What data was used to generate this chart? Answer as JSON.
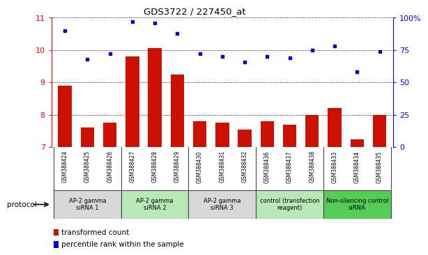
{
  "title": "GDS3722 / 227450_at",
  "samples": [
    "GSM388424",
    "GSM388425",
    "GSM388426",
    "GSM388427",
    "GSM388428",
    "GSM388429",
    "GSM388430",
    "GSM388431",
    "GSM388432",
    "GSM388436",
    "GSM388437",
    "GSM388438",
    "GSM388433",
    "GSM388434",
    "GSM388435"
  ],
  "bar_values": [
    8.9,
    7.6,
    7.75,
    9.8,
    10.05,
    9.25,
    7.8,
    7.75,
    7.55,
    7.8,
    7.7,
    8.0,
    8.2,
    7.25,
    8.0
  ],
  "dot_values": [
    90,
    68,
    72,
    97,
    96,
    88,
    72,
    70,
    66,
    70,
    69,
    75,
    78,
    58,
    74
  ],
  "ylim_left": [
    7,
    11
  ],
  "ylim_right": [
    0,
    100
  ],
  "yticks_left": [
    7,
    8,
    9,
    10,
    11
  ],
  "yticks_right": [
    0,
    25,
    50,
    75,
    100
  ],
  "ytick_labels_right": [
    "0",
    "25",
    "50",
    "75",
    "100%"
  ],
  "groups": [
    {
      "label": "AP-2 gamma\nsiRNA 1",
      "indices": [
        0,
        1,
        2
      ],
      "color": "#d8d8d8"
    },
    {
      "label": "AP-2 gamma\nsiRNA 2",
      "indices": [
        3,
        4,
        5
      ],
      "color": "#b8e8b8"
    },
    {
      "label": "AP-2 gamma\nsiRNA 3",
      "indices": [
        6,
        7,
        8
      ],
      "color": "#d8d8d8"
    },
    {
      "label": "control (transfection\nreagent)",
      "indices": [
        9,
        10,
        11
      ],
      "color": "#b8e8b8"
    },
    {
      "label": "Non-silencing control\nsiRNA",
      "indices": [
        12,
        13,
        14
      ],
      "color": "#55cc55"
    }
  ],
  "bar_color": "#cc1100",
  "dot_color": "#0000cc",
  "protocol_label": "protocol",
  "legend_bar_label": "transformed count",
  "legend_dot_label": "percentile rank within the sample",
  "bg_color": "#ffffff",
  "tick_area_bg": "#d0d0d0",
  "group_border_color": "#444444",
  "spine_color": "#000000"
}
